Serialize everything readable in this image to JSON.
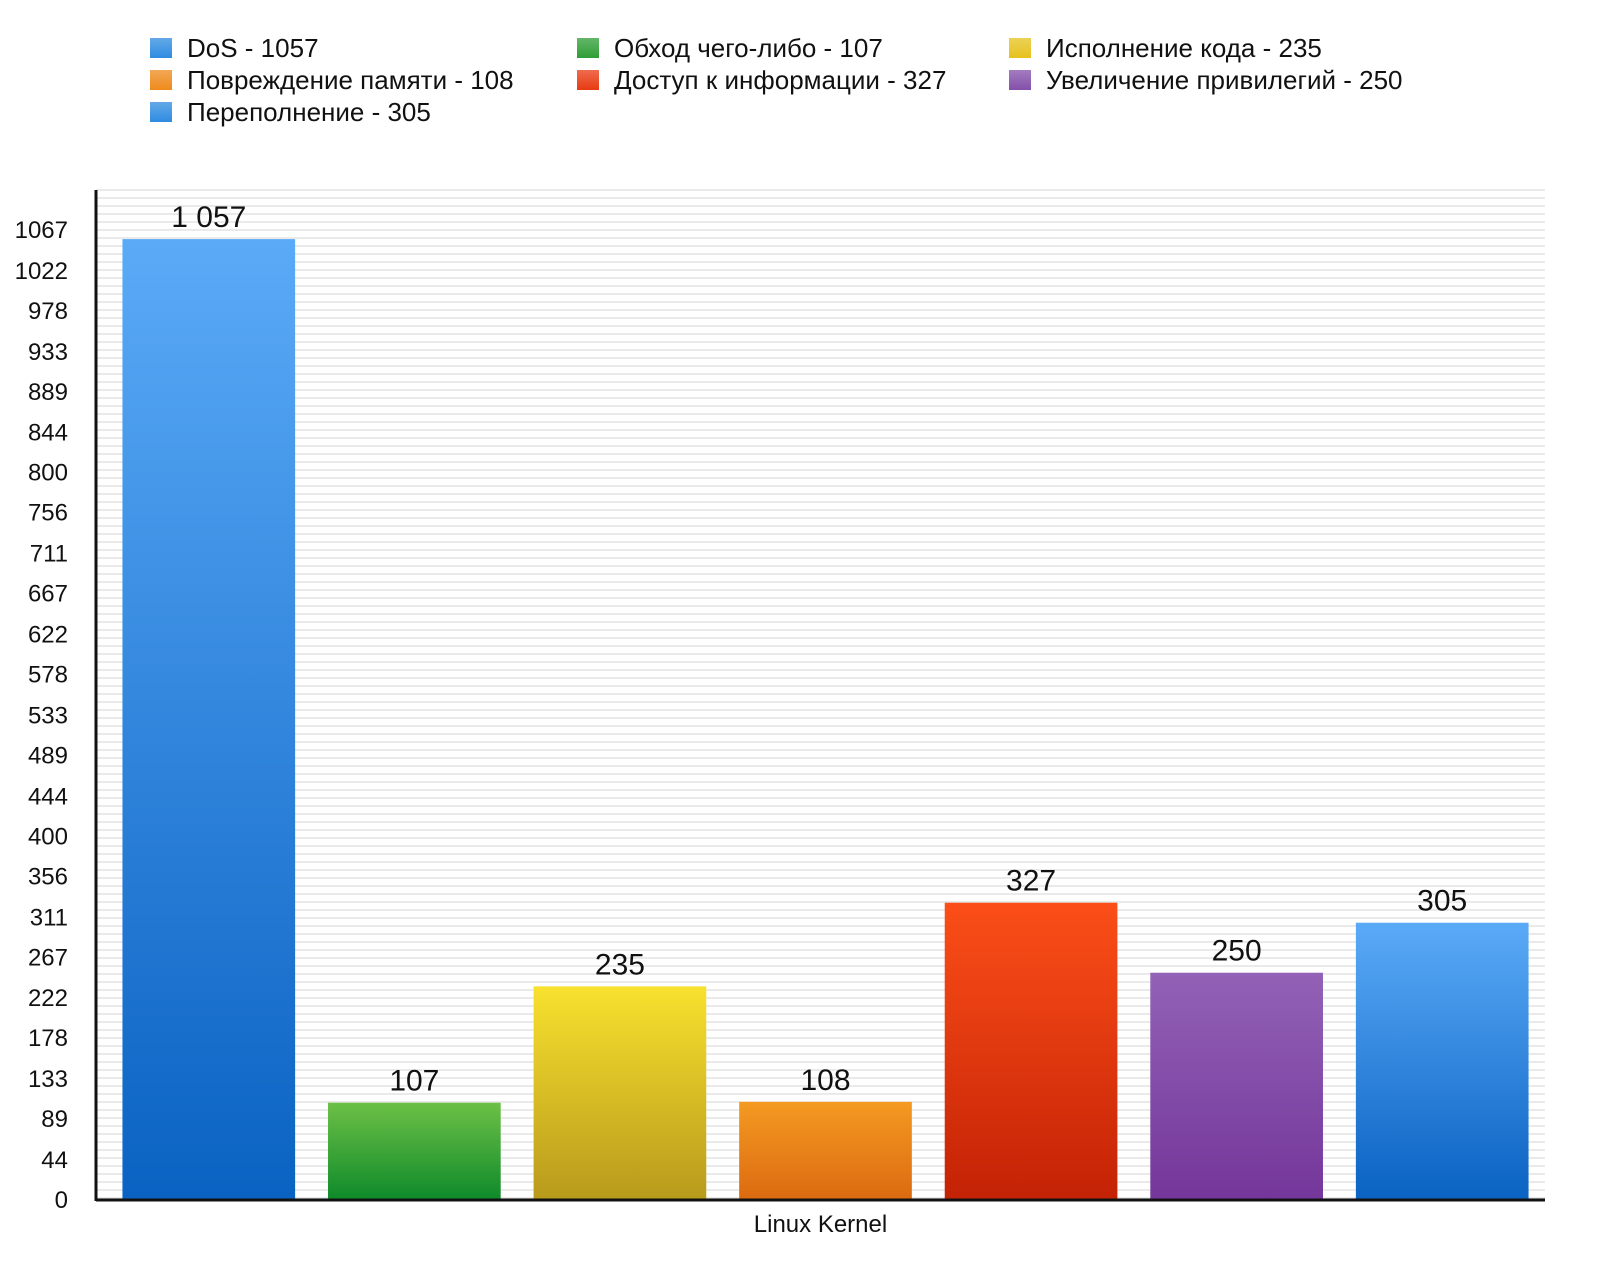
{
  "chart_data": {
    "type": "bar",
    "title": "",
    "xlabel": "Linux Kernel",
    "ylabel": "",
    "ylim": [
      0,
      1111
    ],
    "y_ticks": [
      0,
      44,
      89,
      133,
      178,
      222,
      267,
      311,
      356,
      400,
      444,
      489,
      533,
      578,
      622,
      667,
      711,
      756,
      800,
      844,
      889,
      933,
      978,
      1022,
      1067
    ],
    "grid": true,
    "legend_position": "top",
    "bars": [
      {
        "name": "DoS",
        "value": 1057,
        "value_label": "1 057",
        "color_top": "#5aaaf7",
        "color_bottom": "#0a62c2"
      },
      {
        "name": "Обход чего-либо",
        "value": 107,
        "value_label": "107",
        "color_top": "#6cc046",
        "color_bottom": "#0e8a2a"
      },
      {
        "name": "Исполнение кода",
        "value": 235,
        "value_label": "235",
        "color_top": "#f8e12e",
        "color_bottom": "#b89a1c"
      },
      {
        "name": "Повреждение памяти",
        "value": 108,
        "value_label": "108",
        "color_top": "#f49a22",
        "color_bottom": "#dc6a10"
      },
      {
        "name": "Доступ к информации",
        "value": 327,
        "value_label": "327",
        "color_top": "#fb4e18",
        "color_bottom": "#c42206"
      },
      {
        "name": "Увеличение привилегий",
        "value": 250,
        "value_label": "250",
        "color_top": "#9262b6",
        "color_bottom": "#74369a"
      },
      {
        "name": "Переполнение",
        "value": 305,
        "value_label": "305",
        "color_top": "#5aaaf7",
        "color_bottom": "#0a62c2"
      }
    ],
    "legend": [
      {
        "label": "DoS - 1057",
        "color": "#2f8ce0"
      },
      {
        "label": "Обход чего-либо - 107",
        "color": "#2f9e36"
      },
      {
        "label": "Исполнение кода - 235",
        "color": "#e6c21e"
      },
      {
        "label": "Повреждение памяти - 108",
        "color": "#ee8a1c"
      },
      {
        "label": "Доступ к информации - 327",
        "color": "#e83a12"
      },
      {
        "label": "Увеличение привилегий - 250",
        "color": "#8450aa"
      },
      {
        "label": "Переполнение - 305",
        "color": "#2f8ce0"
      }
    ]
  }
}
